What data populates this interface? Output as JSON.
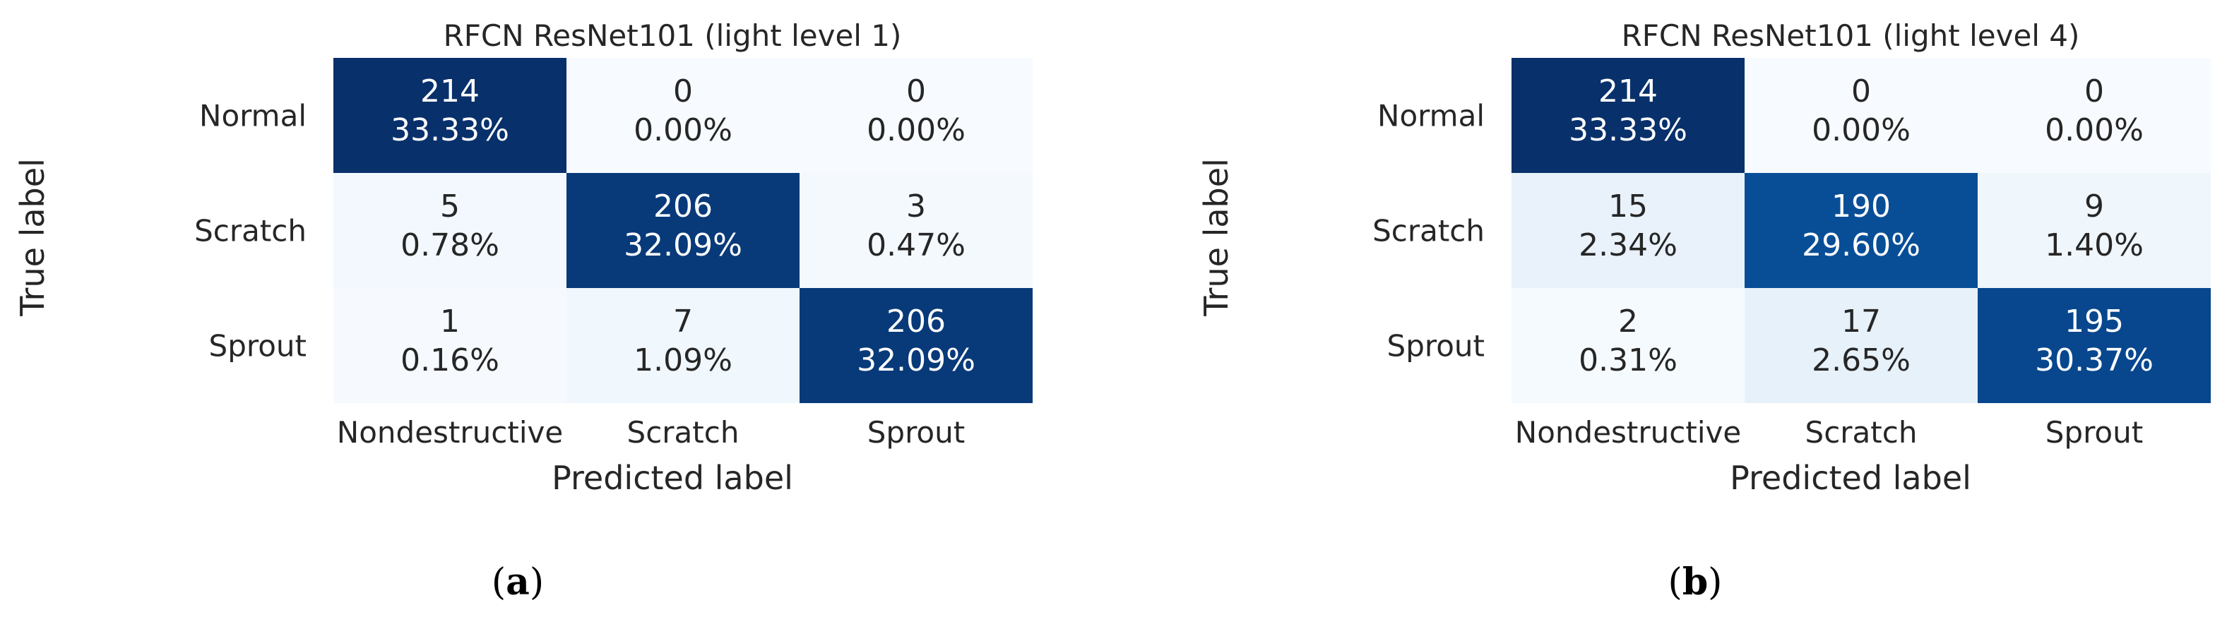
{
  "chart_data": [
    {
      "type": "heatmap",
      "title": "RFCN ResNet101 (light level 1)",
      "xlabel": "Predicted label",
      "ylabel": "True label",
      "x_categories": [
        "Nondestructive",
        "Scratch",
        "Sprout"
      ],
      "y_categories": [
        "Normal",
        "Scratch",
        "Sprout"
      ],
      "values": [
        [
          214,
          0,
          0
        ],
        [
          5,
          206,
          3
        ],
        [
          1,
          7,
          206
        ]
      ],
      "percentages": [
        [
          "33.33%",
          "0.00%",
          "0.00%"
        ],
        [
          "0.78%",
          "32.09%",
          "0.47%"
        ],
        [
          "0.16%",
          "1.09%",
          "32.09%"
        ]
      ],
      "colormap": "Blues",
      "caption": "a"
    },
    {
      "type": "heatmap",
      "title": "RFCN ResNet101 (light level 4)",
      "xlabel": "Predicted label",
      "ylabel": "True label",
      "x_categories": [
        "Nondestructive",
        "Scratch",
        "Sprout"
      ],
      "y_categories": [
        "Normal",
        "Scratch",
        "Sprout"
      ],
      "values": [
        [
          214,
          0,
          0
        ],
        [
          15,
          190,
          9
        ],
        [
          2,
          17,
          195
        ]
      ],
      "percentages": [
        [
          "33.33%",
          "0.00%",
          "0.00%"
        ],
        [
          "2.34%",
          "29.60%",
          "1.40%"
        ],
        [
          "0.31%",
          "2.65%",
          "30.37%"
        ]
      ],
      "colormap": "Blues",
      "caption": "b"
    }
  ]
}
